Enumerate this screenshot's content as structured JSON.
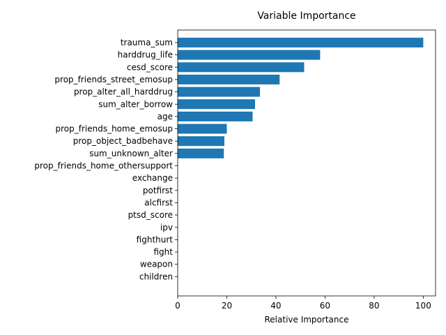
{
  "chart_data": {
    "type": "bar",
    "orientation": "horizontal",
    "title": "Variable Importance",
    "xlabel": "Relative Importance",
    "ylabel": "",
    "xlim": [
      0,
      105
    ],
    "xticks": [
      0,
      20,
      40,
      60,
      80,
      100
    ],
    "grid": false,
    "bar_color": "#1f77b4",
    "categories": [
      "trauma_sum",
      "harddrug_life",
      "cesd_score",
      "prop_friends_street_emosup",
      "prop_alter_all_harddrug",
      "sum_alter_borrow",
      "age",
      "prop_friends_home_emosup",
      "prop_object_badbehave",
      "sum_unknown_alter",
      "prop_friends_home_othersupport",
      "exchange",
      "potfirst",
      "alcfirst",
      "ptsd_score",
      "ipv",
      "fighthurt",
      "fight",
      "weapon",
      "children"
    ],
    "values": [
      100,
      58,
      51.5,
      41.5,
      33.5,
      31.5,
      30.5,
      20,
      19,
      18.8,
      0,
      0,
      0,
      0,
      0,
      0,
      0,
      0,
      0,
      0
    ]
  }
}
